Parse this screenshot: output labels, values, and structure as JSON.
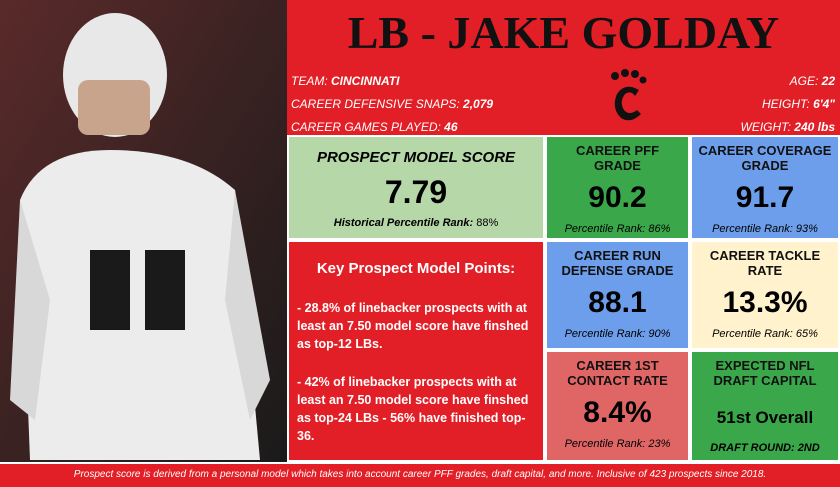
{
  "header": {
    "title": "LB - JAKE GOLDAY",
    "left": [
      {
        "label": "TEAM: ",
        "value": "CINCINNATI"
      },
      {
        "label": "CAREER DEFENSIVE SNAPS: ",
        "value": "2,079"
      },
      {
        "label": "CAREER GAMES PLAYED: ",
        "value": "46"
      }
    ],
    "right": [
      {
        "label": "AGE: ",
        "value": "22"
      },
      {
        "label": "HEIGHT: ",
        "value": "6'4\""
      },
      {
        "label": "WEIGHT: ",
        "value": "240 lbs"
      }
    ]
  },
  "prospect": {
    "title": "PROSPECT MODEL SCORE",
    "value": "7.79",
    "rank_label": "Historical Percentile Rank: ",
    "rank": "88%"
  },
  "stats": [
    {
      "title": "CAREER PFF GRADE",
      "value": "90.2",
      "rank_label": "Percentile Rank: ",
      "rank": "86%"
    },
    {
      "title": "CAREER COVERAGE GRADE",
      "value": "91.7",
      "rank_label": "Percentile Rank: ",
      "rank": "93%"
    },
    {
      "title": "CAREER RUN DEFENSE GRADE",
      "value": "88.1",
      "rank_label": "Percentile Rank: ",
      "rank": "90%"
    },
    {
      "title": "CAREER TACKLE RATE",
      "value": "13.3%",
      "rank_label": "Percentile Rank: ",
      "rank": "65%"
    },
    {
      "title": "CAREER 1ST CONTACT RATE",
      "value": "8.4%",
      "rank_label": "Percentile Rank: ",
      "rank": "23%"
    },
    {
      "title": "EXPECTED NFL DRAFT CAPITAL",
      "value": "51st Overall",
      "rank_label": "DRAFT ROUND: ",
      "rank": "2ND"
    }
  ],
  "key_points": {
    "title": "Key Prospect Model Points:",
    "items": [
      "- 28.8% of linebacker prospects with at least an 7.50 model score have finshed as top-12 LBs.",
      "- 42% of linebacker prospects with at least an 7.50 model score have finshed as top-24 LBs - 56% have finished top-36."
    ]
  },
  "footer": "Prospect score is derived from a personal model which takes into account career PFF grades, draft capital, and more. Inclusive of 423 prospects since 2018."
}
